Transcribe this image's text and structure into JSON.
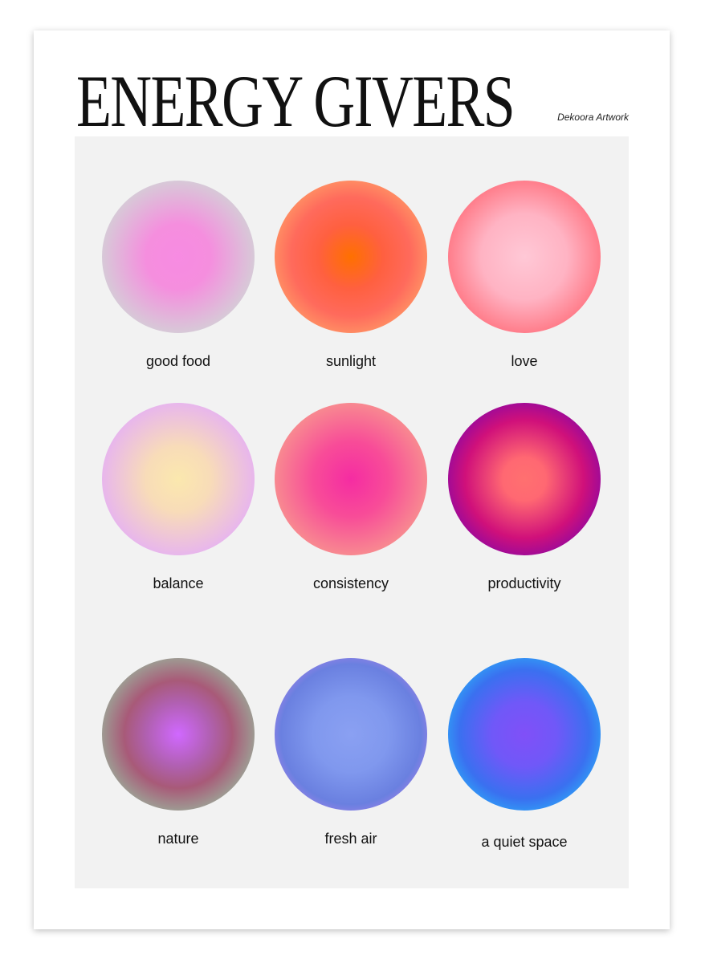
{
  "header": {
    "title": "ENERGY GIVERS",
    "credit": "Dekoora Artwork"
  },
  "items": [
    {
      "label": "good food"
    },
    {
      "label": "sunlight"
    },
    {
      "label": "love"
    },
    {
      "label": "balance"
    },
    {
      "label": "consistency"
    },
    {
      "label": "productivity"
    },
    {
      "label": "nature"
    },
    {
      "label": "fresh air"
    },
    {
      "label": "a quiet space"
    }
  ]
}
